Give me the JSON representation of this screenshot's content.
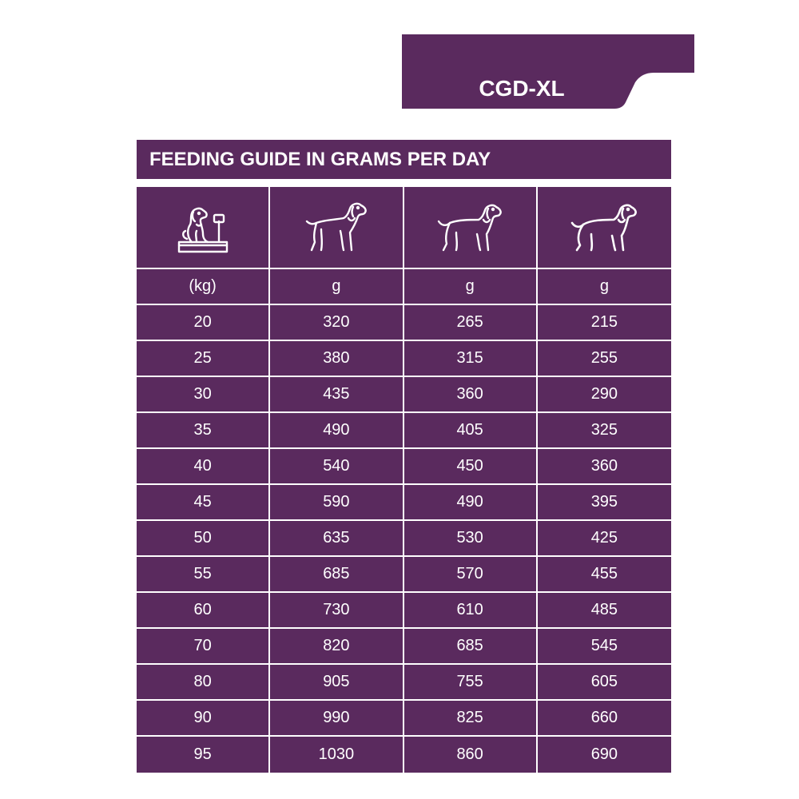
{
  "badge": {
    "label": "CGD-XL"
  },
  "table": {
    "title": "FEEDING GUIDE IN GRAMS PER DAY",
    "icons": [
      "dog-on-scale-icon",
      "slim-dog-icon",
      "medium-dog-icon",
      "large-dog-icon"
    ],
    "units": [
      "(kg)",
      "g",
      "g",
      "g"
    ],
    "rows": [
      [
        "20",
        "320",
        "265",
        "215"
      ],
      [
        "25",
        "380",
        "315",
        "255"
      ],
      [
        "30",
        "435",
        "360",
        "290"
      ],
      [
        "35",
        "490",
        "405",
        "325"
      ],
      [
        "40",
        "540",
        "450",
        "360"
      ],
      [
        "45",
        "590",
        "490",
        "395"
      ],
      [
        "50",
        "635",
        "530",
        "425"
      ],
      [
        "55",
        "685",
        "570",
        "455"
      ],
      [
        "60",
        "730",
        "610",
        "485"
      ],
      [
        "70",
        "820",
        "685",
        "545"
      ],
      [
        "80",
        "905",
        "755",
        "605"
      ],
      [
        "90",
        "990",
        "825",
        "660"
      ],
      [
        "95",
        "1030",
        "860",
        "690"
      ]
    ]
  },
  "colors": {
    "accent": "#5a2a5e",
    "background": "#ffffff"
  }
}
